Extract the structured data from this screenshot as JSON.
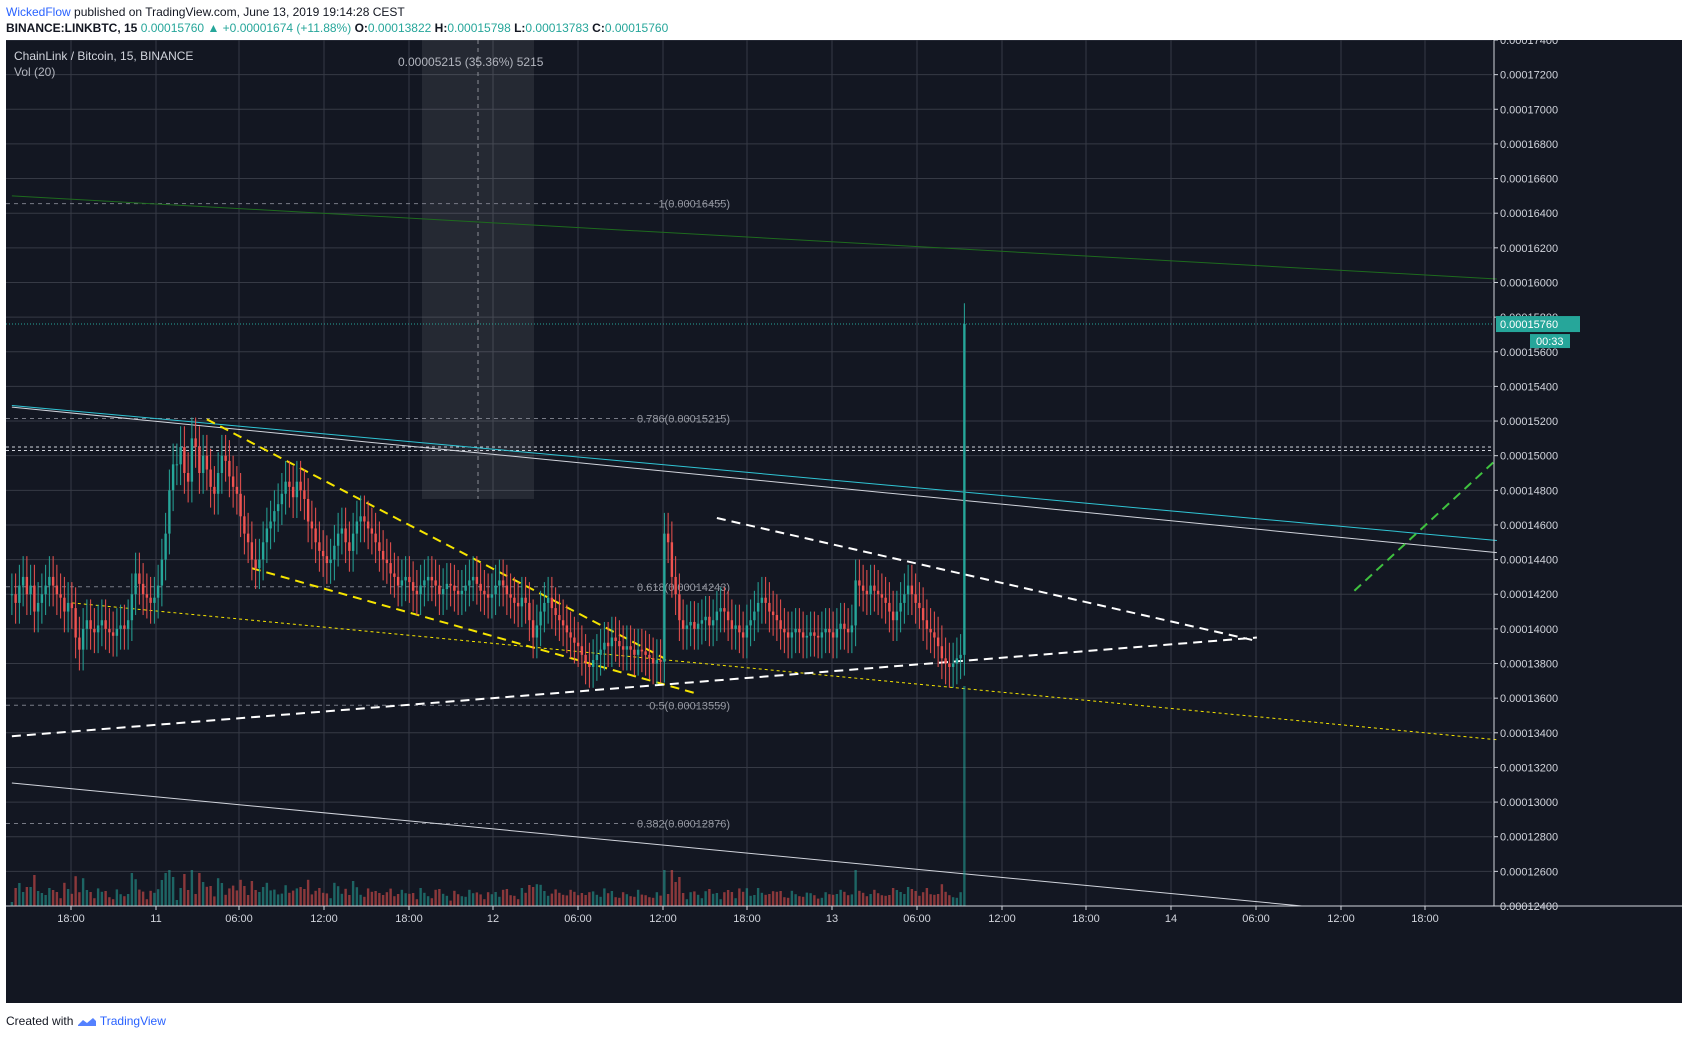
{
  "header": {
    "author": "WickedFlow",
    "published": "published on TradingView.com, June 13, 2019 19:14:28 CEST",
    "symbol": "BINANCE:LINKBTC, 15",
    "last": "0.00015760",
    "change_arrow": "▲",
    "change": "+0.00001674 (+11.88%)",
    "o_label": "O:",
    "o_value": "0.00013822",
    "h_label": "H:",
    "h_value": "0.00015798",
    "l_label": "L:",
    "l_value": "0.00013783",
    "c_label": "C:",
    "c_value": "0.00015760"
  },
  "footer": {
    "created_with": "Created with",
    "brand": "TradingView"
  },
  "colors": {
    "bg": "#131722",
    "up": "#26a69a",
    "down": "#ef5350",
    "grid": "#363a45",
    "text": "#b2b5be",
    "yellow": "#f5e400",
    "cyan": "#30c5d5",
    "green": "#3fc23f",
    "darkgreen": "#1e6b1e"
  },
  "chart_data": {
    "type": "candlestick",
    "title": "ChainLink / Bitcoin, 15, BINANCE",
    "indicator": "Vol (20)",
    "ylim": [
      0.000124,
      0.000174
    ],
    "y_ticks": [
      "0.00017400",
      "0.00017200",
      "0.00017000",
      "0.00016800",
      "0.00016600",
      "0.00016400",
      "0.00016200",
      "0.00016000",
      "0.00015800",
      "0.00015600",
      "0.00015400",
      "0.00015200",
      "0.00015000",
      "0.00014800",
      "0.00014600",
      "0.00014400",
      "0.00014200",
      "0.00014000",
      "0.00013800",
      "0.00013600",
      "0.00013400",
      "0.00013200",
      "0.00013000",
      "0.00012800",
      "0.00012600",
      "0.00012400"
    ],
    "x_ticks": [
      "18:00",
      "11",
      "06:00",
      "12:00",
      "18:00",
      "12",
      "06:00",
      "12:00",
      "18:00",
      "13",
      "06:00",
      "12:00",
      "18:00",
      "14",
      "06:00",
      "12:00",
      "18:00"
    ],
    "last_price": {
      "value": 0.0001576,
      "label": "0.00015760",
      "countdown": "00:33"
    },
    "measure": {
      "label": "0.00005215 (35.36%) 5215",
      "x_bars": [
        170,
        200
      ],
      "y_range": [
        0.0001475,
        0.000174
      ]
    },
    "fib_levels": [
      {
        "level": "1",
        "label": "1(0.00016455)",
        "value": 0.00016455
      },
      {
        "level": "0.786",
        "label": "0.786(0.00015215)",
        "value": 0.00015215
      },
      {
        "level": "0.618",
        "label": "0.618(0.00014243)",
        "value": 0.00014243
      },
      {
        "level": "0.5",
        "label": "0.5(0.00013559)",
        "value": 0.00013559
      },
      {
        "level": "0.382",
        "label": "0.382(0.00012876)",
        "value": 0.00012876
      }
    ],
    "horizontal_lines": [
      0.0001505,
      0.0001503
    ],
    "trendlines": [
      {
        "kind": "solid",
        "color": "#1e6b1e",
        "from": [
          0,
          0.000165
        ],
        "to": [
          396,
          0.0001602
        ]
      },
      {
        "kind": "solid",
        "color": "#30c5d5",
        "from": [
          0,
          0.0001529
        ],
        "to": [
          396,
          0.0001451
        ]
      },
      {
        "kind": "solid",
        "color": "#d1d4dc",
        "from": [
          0,
          0.0001528
        ],
        "to": [
          396,
          0.0001444
        ]
      },
      {
        "kind": "solid",
        "color": "#d1d4dc",
        "from": [
          0,
          0.0001311
        ],
        "to": [
          344,
          0.000124
        ]
      },
      {
        "kind": "dashed",
        "color": "#f5e400",
        "from": [
          52,
          0.0001521
        ],
        "to": [
          174,
          0.0001383
        ]
      },
      {
        "kind": "dashed",
        "color": "#f5e400",
        "from": [
          64,
          0.0001435
        ],
        "to": [
          182,
          0.0001363
        ]
      },
      {
        "kind": "dotted",
        "color": "#f5e400",
        "from": [
          16,
          0.0001415
        ],
        "to": [
          396,
          0.0001336
        ]
      },
      {
        "kind": "dashed",
        "color": "#ffffff",
        "from": [
          0,
          0.0001338
        ],
        "to": [
          332,
          0.0001395
        ]
      },
      {
        "kind": "dashed",
        "color": "#ffffff",
        "from": [
          188,
          0.0001464
        ],
        "to": [
          332,
          0.0001393
        ]
      },
      {
        "kind": "dashed",
        "color": "#3fc23f",
        "from": [
          358,
          0.0001422
        ],
        "to": [
          396,
          0.0001498
        ]
      }
    ],
    "close": [
      0.000142,
      0.0001415,
      0.0001425,
      0.000143,
      0.000142,
      0.0001425,
      0.000141,
      0.0001415,
      0.000142,
      0.0001425,
      0.000143,
      0.0001425,
      0.000142,
      0.0001418,
      0.000141,
      0.0001415,
      0.0001412,
      0.0001395,
      0.0001388,
      0.00014,
      0.0001405,
      0.00014,
      0.0001398,
      0.0001402,
      0.0001405,
      0.00014,
      0.0001398,
      0.0001396,
      0.00014,
      0.0001402,
      0.00014,
      0.0001405,
      0.000142,
      0.0001432,
      0.0001426,
      0.000142,
      0.0001418,
      0.0001415,
      0.0001418,
      0.0001425,
      0.000144,
      0.0001455,
      0.000148,
      0.0001495,
      0.0001495,
      0.0001505,
      0.000149,
      0.0001485,
      0.000151,
      0.0001505,
      0.000149,
      0.00015,
      0.0001492,
      0.0001482,
      0.0001478,
      0.000149,
      0.00015,
      0.0001497,
      0.0001488,
      0.0001482,
      0.0001478,
      0.0001465,
      0.0001455,
      0.000145,
      0.000144,
      0.0001435,
      0.000144,
      0.000145,
      0.0001458,
      0.0001462,
      0.0001468,
      0.0001472,
      0.0001478,
      0.0001485,
      0.0001482,
      0.0001476,
      0.0001485,
      0.000148,
      0.0001475,
      0.0001462,
      0.0001458,
      0.000145,
      0.0001445,
      0.0001442,
      0.0001438,
      0.000144,
      0.0001448,
      0.0001455,
      0.0001458,
      0.000145,
      0.0001445,
      0.0001455,
      0.0001462,
      0.0001465,
      0.0001462,
      0.0001458,
      0.0001455,
      0.000145,
      0.0001445,
      0.000144,
      0.0001438,
      0.0001432,
      0.000143,
      0.0001425,
      0.0001428,
      0.000143,
      0.0001427,
      0.0001422,
      0.000142,
      0.0001425,
      0.0001428,
      0.000143,
      0.0001428,
      0.0001425,
      0.000142,
      0.0001423,
      0.0001426,
      0.0001425,
      0.0001422,
      0.000142,
      0.0001422,
      0.0001425,
      0.0001428,
      0.000143,
      0.0001426,
      0.0001422,
      0.000142,
      0.0001418,
      0.000142,
      0.0001425,
      0.0001428,
      0.0001425,
      0.000142,
      0.0001418,
      0.0001415,
      0.0001413,
      0.0001418,
      0.0001415,
      0.0001405,
      0.0001395,
      0.0001402,
      0.000141,
      0.0001415,
      0.0001418,
      0.0001412,
      0.0001408,
      0.0001405,
      0.0001402,
      0.0001398,
      0.0001395,
      0.0001392,
      0.000139,
      0.0001385,
      0.000138,
      0.0001378,
      0.0001382,
      0.0001385,
      0.0001388,
      0.0001392,
      0.000139,
      0.0001395,
      0.0001393,
      0.000139,
      0.0001388,
      0.000139,
      0.0001388,
      0.0001385,
      0.0001388,
      0.0001387,
      0.0001385,
      0.0001383,
      0.000138,
      0.0001382,
      0.0001381,
      0.0001455,
      0.000145,
      0.000143,
      0.000142,
      0.0001405,
      0.00014,
      0.0001402,
      0.0001404,
      0.00014,
      0.0001403,
      0.0001405,
      0.0001407,
      0.0001402,
      0.0001405,
      0.000141,
      0.0001412,
      0.000141,
      0.0001405,
      0.00014,
      0.0001402,
      0.0001398,
      0.0001395,
      0.0001402,
      0.0001405,
      0.000141,
      0.0001415,
      0.0001418,
      0.0001415,
      0.000141,
      0.0001408,
      0.0001405,
      0.00014,
      0.0001398,
      0.0001395,
      0.0001398,
      0.00014,
      0.0001398,
      0.0001395,
      0.0001396,
      0.0001398,
      0.0001396,
      0.0001395,
      0.0001398,
      0.00014,
      0.0001398,
      0.0001395,
      0.00014,
      0.0001403,
      0.00014,
      0.0001398,
      0.0001402,
      0.0001428,
      0.0001425,
      0.0001422,
      0.000142,
      0.0001425,
      0.0001422,
      0.000142,
      0.0001418,
      0.0001415,
      0.000141,
      0.0001405,
      0.000141,
      0.0001415,
      0.000142,
      0.0001425,
      0.000142,
      0.0001415,
      0.0001412,
      0.0001405,
      0.00014,
      0.0001398,
      0.0001395,
      0.000139,
      0.0001383,
      0.000138,
      0.0001378,
      0.000138,
      0.0001383,
      0.0001385,
      0.0001576
    ]
  }
}
